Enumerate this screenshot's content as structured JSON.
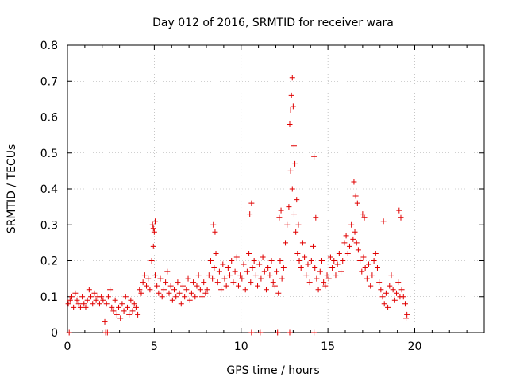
{
  "chart_data": {
    "type": "scatter",
    "title": "Day 012 of 2016, SRMTID for receiver wara",
    "xlabel": "GPS time / hours",
    "ylabel": "SRMTID / TECUs",
    "xlim": [
      0,
      24
    ],
    "ylim": [
      0,
      0.8
    ],
    "xticks": [
      0,
      5,
      10,
      15,
      20
    ],
    "yticks": [
      0,
      0.1,
      0.2,
      0.3,
      0.4,
      0.5,
      0.6,
      0.7,
      0.8
    ],
    "xtick_labels": [
      "0",
      "5",
      "10",
      "15",
      "20"
    ],
    "ytick_labels": [
      "0",
      "0.1",
      "0.2",
      "0.3",
      "0.4",
      "0.5",
      "0.6",
      "0.7",
      "0.8"
    ],
    "grid": true,
    "marker": "plus",
    "color": "#e00000",
    "series": [
      {
        "name": "SRMTID",
        "x": [
          0.05,
          0.15,
          0.25,
          0.35,
          0.45,
          0.55,
          0.65,
          0.75,
          0.85,
          0.95,
          1.05,
          1.15,
          1.25,
          1.35,
          1.45,
          1.55,
          1.65,
          1.75,
          1.85,
          1.95,
          2.05,
          2.15,
          2.25,
          2.35,
          2.45,
          2.55,
          2.65,
          2.75,
          2.85,
          2.95,
          3.05,
          3.15,
          3.25,
          3.35,
          3.45,
          3.55,
          3.65,
          3.75,
          3.85,
          3.95,
          4.05,
          4.15,
          4.25,
          4.35,
          4.45,
          4.55,
          4.65,
          4.75,
          4.85,
          4.95,
          5.05,
          5.15,
          5.25,
          5.35,
          5.45,
          5.55,
          5.65,
          5.75,
          5.85,
          5.95,
          6.05,
          6.15,
          6.25,
          6.35,
          6.45,
          6.55,
          6.65,
          6.75,
          6.85,
          6.95,
          7.05,
          7.15,
          7.25,
          7.35,
          7.45,
          7.55,
          7.65,
          7.75,
          7.85,
          7.95,
          8.05,
          8.15,
          8.25,
          8.35,
          8.45,
          8.55,
          8.65,
          8.75,
          8.85,
          8.95,
          9.05,
          9.15,
          9.25,
          9.35,
          9.45,
          9.55,
          9.65,
          9.75,
          9.85,
          9.95,
          10.05,
          10.15,
          10.25,
          10.35,
          10.45,
          10.55,
          10.65,
          10.75,
          10.85,
          10.95,
          11.05,
          11.15,
          11.25,
          11.35,
          11.45,
          11.55,
          11.65,
          11.75,
          11.85,
          11.95,
          12.05,
          12.15,
          12.25,
          12.35,
          12.45,
          12.55,
          12.65,
          12.75,
          12.85,
          12.95,
          13.05,
          13.15,
          13.25,
          13.35,
          13.45,
          13.55,
          13.65,
          13.75,
          13.85,
          13.95,
          14.05,
          14.15,
          14.25,
          14.35,
          14.45,
          14.55,
          14.65,
          14.75,
          14.85,
          14.95,
          15.05,
          15.15,
          15.25,
          15.35,
          15.45,
          15.55,
          15.65,
          15.75,
          15.85,
          15.95,
          16.05,
          16.15,
          16.25,
          16.35,
          16.45,
          16.55,
          16.65,
          16.75,
          16.85,
          16.95,
          17.05,
          17.15,
          17.25,
          17.35,
          17.45,
          17.55,
          17.65,
          17.75,
          17.85,
          17.95,
          18.05,
          18.15,
          18.25,
          18.35,
          18.45,
          18.55,
          18.65,
          18.75,
          18.85,
          18.95,
          19.05,
          19.15,
          19.25,
          19.35,
          19.45,
          19.55,
          4.9,
          4.95,
          5.0,
          5.05,
          8.4,
          8.5,
          10.5,
          10.6,
          12.2,
          12.3,
          12.8,
          12.85,
          12.9,
          12.95,
          13.0,
          13.05,
          13.1,
          13.2,
          13.3,
          14.2,
          14.3,
          16.5,
          16.6,
          16.7,
          17.0,
          17.1,
          18.2,
          19.1,
          19.2,
          19.5,
          0.1,
          2.2,
          2.3,
          10.6,
          11.1,
          12.1,
          12.8,
          14.2
        ],
        "y": [
          0.08,
          0.09,
          0.1,
          0.07,
          0.11,
          0.09,
          0.08,
          0.07,
          0.1,
          0.08,
          0.07,
          0.09,
          0.12,
          0.1,
          0.08,
          0.11,
          0.09,
          0.1,
          0.08,
          0.1,
          0.09,
          0.03,
          0.08,
          0.1,
          0.12,
          0.07,
          0.06,
          0.09,
          0.05,
          0.07,
          0.04,
          0.08,
          0.06,
          0.1,
          0.07,
          0.05,
          0.09,
          0.06,
          0.08,
          0.07,
          0.05,
          0.12,
          0.11,
          0.14,
          0.16,
          0.13,
          0.15,
          0.12,
          0.2,
          0.24,
          0.16,
          0.13,
          0.11,
          0.15,
          0.1,
          0.12,
          0.14,
          0.17,
          0.11,
          0.13,
          0.09,
          0.12,
          0.1,
          0.14,
          0.11,
          0.08,
          0.13,
          0.1,
          0.12,
          0.15,
          0.09,
          0.11,
          0.14,
          0.1,
          0.13,
          0.16,
          0.12,
          0.1,
          0.14,
          0.11,
          0.12,
          0.16,
          0.2,
          0.15,
          0.18,
          0.22,
          0.14,
          0.17,
          0.12,
          0.19,
          0.15,
          0.13,
          0.18,
          0.16,
          0.2,
          0.14,
          0.17,
          0.21,
          0.13,
          0.16,
          0.15,
          0.19,
          0.12,
          0.17,
          0.22,
          0.14,
          0.18,
          0.2,
          0.16,
          0.13,
          0.19,
          0.15,
          0.21,
          0.17,
          0.12,
          0.18,
          0.16,
          0.2,
          0.14,
          0.13,
          0.17,
          0.11,
          0.2,
          0.15,
          0.18,
          0.25,
          0.3,
          0.35,
          0.45,
          0.4,
          0.33,
          0.28,
          0.22,
          0.2,
          0.18,
          0.25,
          0.21,
          0.16,
          0.19,
          0.14,
          0.2,
          0.24,
          0.18,
          0.15,
          0.12,
          0.17,
          0.2,
          0.14,
          0.13,
          0.16,
          0.15,
          0.21,
          0.18,
          0.2,
          0.16,
          0.19,
          0.22,
          0.17,
          0.2,
          0.25,
          0.27,
          0.22,
          0.24,
          0.3,
          0.26,
          0.28,
          0.25,
          0.23,
          0.2,
          0.17,
          0.21,
          0.18,
          0.15,
          0.19,
          0.13,
          0.16,
          0.2,
          0.22,
          0.18,
          0.14,
          0.12,
          0.1,
          0.08,
          0.11,
          0.07,
          0.13,
          0.16,
          0.12,
          0.09,
          0.11,
          0.14,
          0.1,
          0.12,
          0.1,
          0.08,
          0.05,
          0.3,
          0.29,
          0.28,
          0.31,
          0.3,
          0.28,
          0.33,
          0.36,
          0.32,
          0.34,
          0.58,
          0.62,
          0.66,
          0.71,
          0.63,
          0.52,
          0.47,
          0.37,
          0.3,
          0.49,
          0.32,
          0.42,
          0.38,
          0.36,
          0.33,
          0.32,
          0.31,
          0.34,
          0.32,
          0.04,
          0.0,
          0.0,
          0.0,
          0.0,
          0.0,
          0.0,
          0.0,
          0.0
        ]
      }
    ]
  }
}
